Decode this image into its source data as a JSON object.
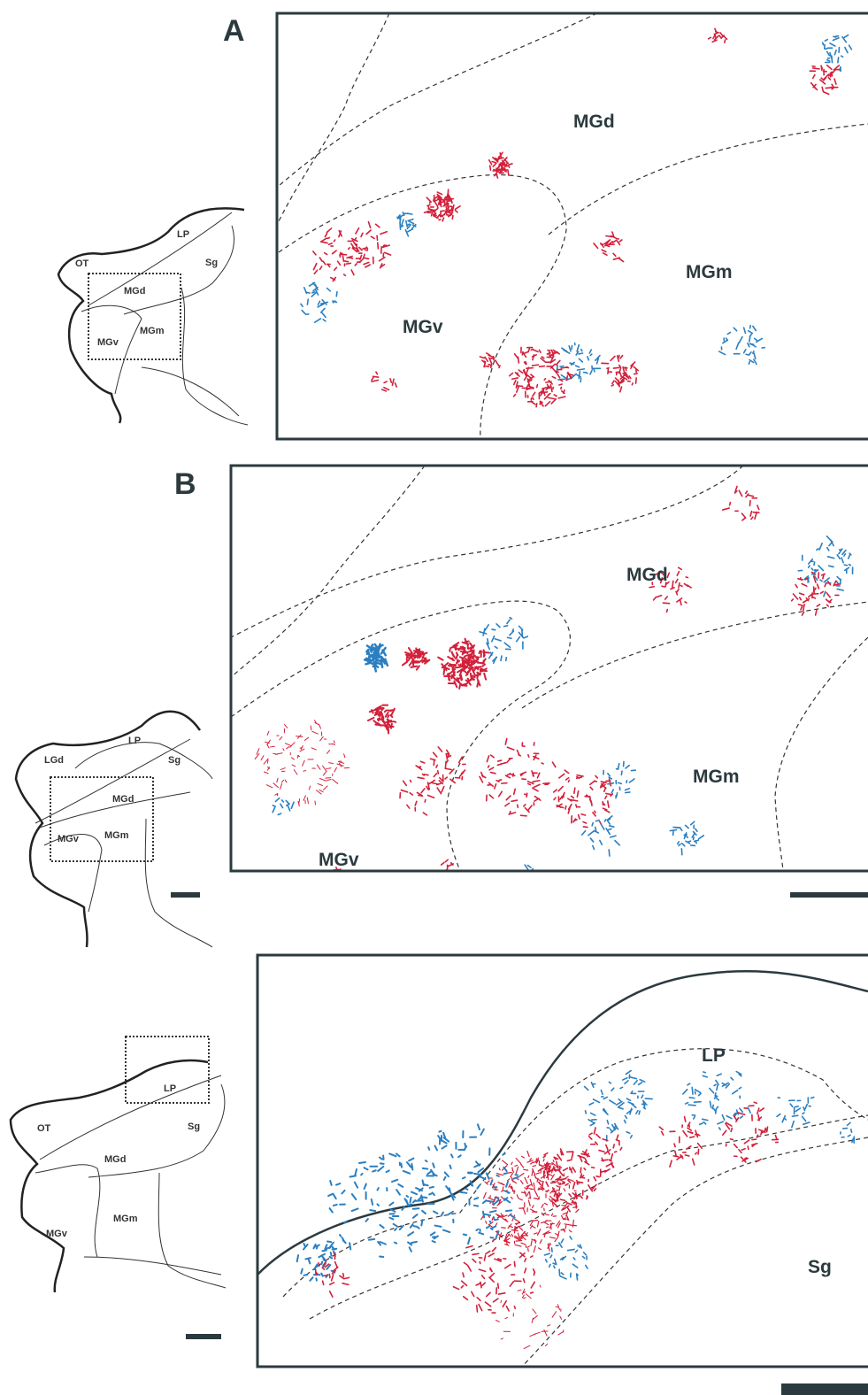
{
  "panels": [
    {
      "label": "A",
      "schematic_labels": [
        "OT",
        "LP",
        "Sg",
        "MGd",
        "MGv",
        "MGm"
      ],
      "region_labels": [
        "MGd",
        "MGm",
        "MGv"
      ]
    },
    {
      "label": "B",
      "schematic_labels": [
        "LGd",
        "LP",
        "Sg",
        "MGd",
        "MGv",
        "MGm"
      ],
      "region_labels": [
        "MGd",
        "MGm",
        "MGv"
      ]
    },
    {
      "schematic_labels": [
        "OT",
        "LP",
        "Sg",
        "MGd",
        "MGv",
        "MGm"
      ],
      "region_labels": [
        "LP",
        "Sg"
      ]
    }
  ]
}
